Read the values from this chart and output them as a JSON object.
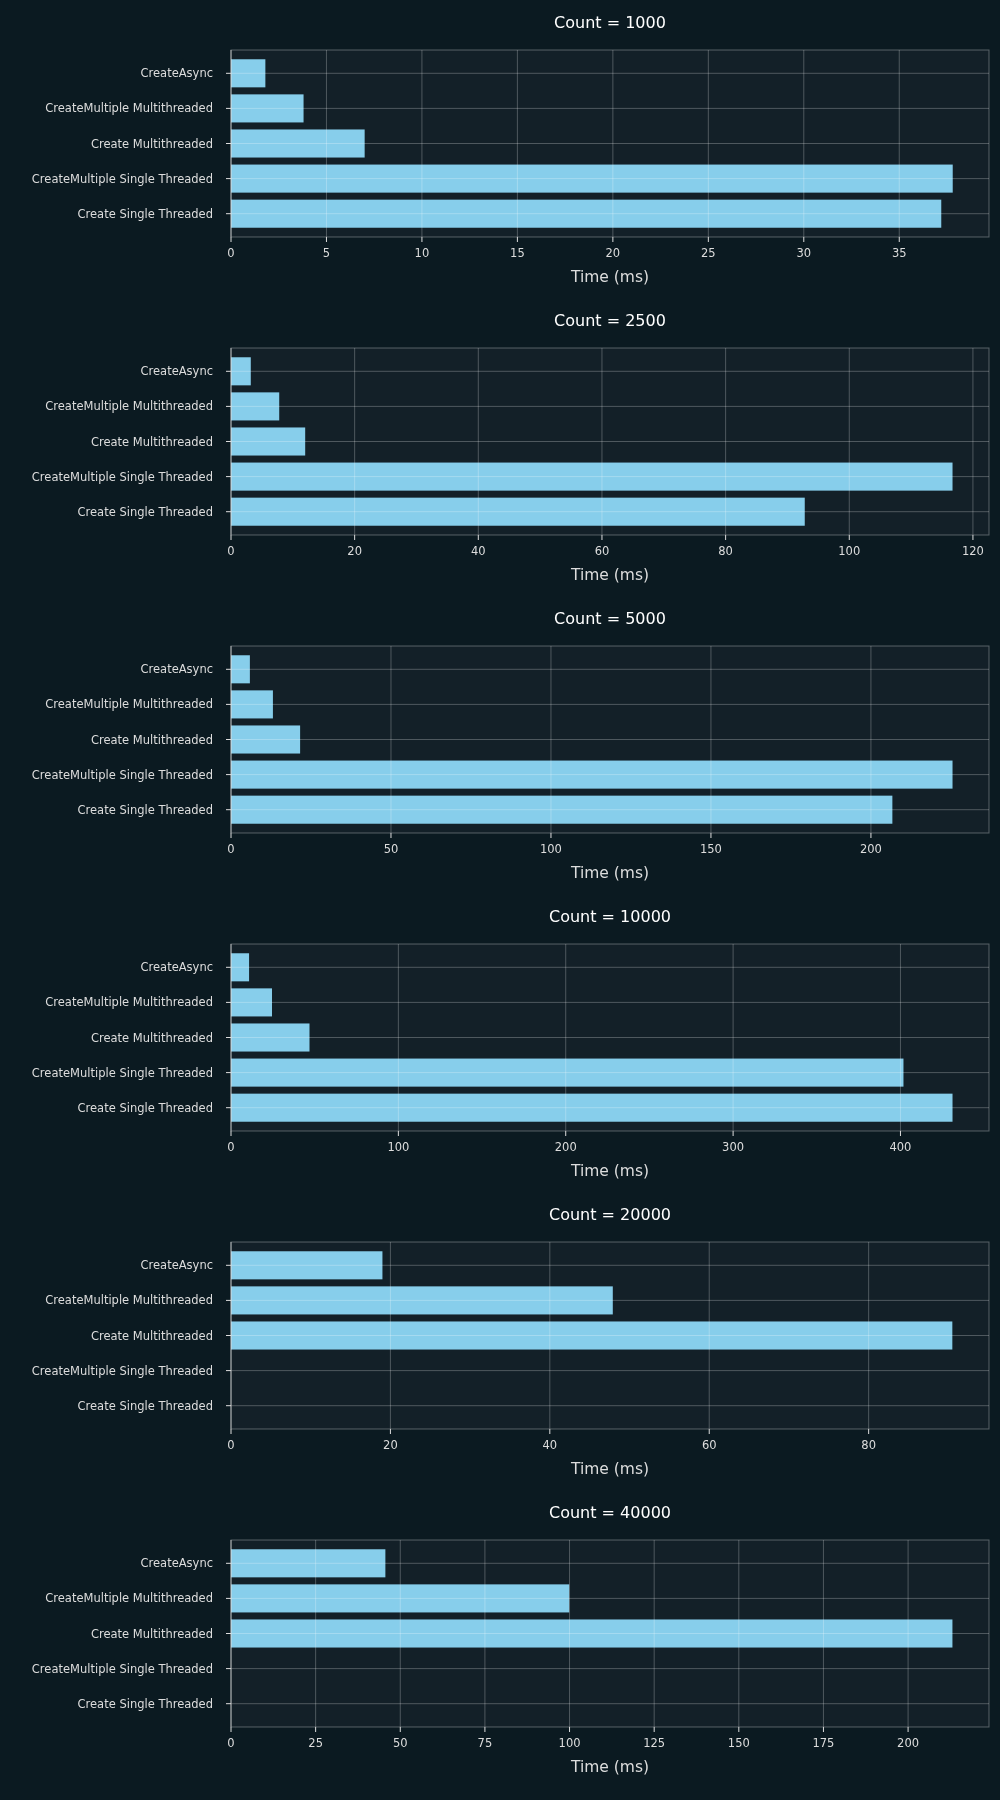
{
  "chart_data": [
    {
      "type": "bar",
      "orientation": "horizontal",
      "title": "Count = 1000",
      "xlabel": "Time (ms)",
      "categories": [
        "CreateAsync",
        "CreateMultiple Multithreaded",
        "Create Multithreaded",
        "CreateMultiple Single Threaded",
        "Create Single Threaded"
      ],
      "values": [
        1.8,
        3.8,
        7.0,
        37.8,
        37.2
      ],
      "color": "#87ceeb",
      "xlim": [
        0,
        39.7
      ],
      "xticks": [
        0,
        5,
        10,
        15,
        20,
        25,
        30,
        35
      ],
      "grid": true
    },
    {
      "type": "bar",
      "orientation": "horizontal",
      "title": "Count = 2500",
      "xlabel": "Time (ms)",
      "categories": [
        "CreateAsync",
        "CreateMultiple Multithreaded",
        "Create Multithreaded",
        "CreateMultiple Single Threaded",
        "Create Single Threaded"
      ],
      "values": [
        3.2,
        7.8,
        12.0,
        116.7,
        92.8
      ],
      "color": "#87ceeb",
      "xlim": [
        0,
        122.6
      ],
      "xticks": [
        0,
        20,
        40,
        60,
        80,
        100,
        120
      ],
      "grid": true
    },
    {
      "type": "bar",
      "orientation": "horizontal",
      "title": "Count = 5000",
      "xlabel": "Time (ms)",
      "categories": [
        "CreateAsync",
        "CreateMultiple Multithreaded",
        "Create Multithreaded",
        "CreateMultiple Single Threaded",
        "Create Single Threaded"
      ],
      "values": [
        5.9,
        13.1,
        21.6,
        225.5,
        206.7
      ],
      "color": "#87ceeb",
      "xlim": [
        0,
        236.9
      ],
      "xticks": [
        0,
        50,
        100,
        150,
        200
      ],
      "grid": true
    },
    {
      "type": "bar",
      "orientation": "horizontal",
      "title": "Count = 10000",
      "xlabel": "Time (ms)",
      "categories": [
        "CreateAsync",
        "CreateMultiple Multithreaded",
        "Create Multithreaded",
        "CreateMultiple Single Threaded",
        "Create Single Threaded"
      ],
      "values": [
        10.8,
        24.5,
        46.9,
        401.8,
        431.1
      ],
      "color": "#87ceeb",
      "xlim": [
        0,
        452.9
      ],
      "xticks": [
        0,
        100,
        200,
        300,
        400
      ],
      "grid": true
    },
    {
      "type": "bar",
      "orientation": "horizontal",
      "title": "Count = 20000",
      "xlabel": "Time (ms)",
      "categories": [
        "CreateAsync",
        "CreateMultiple Multithreaded",
        "Create Multithreaded",
        "CreateMultiple Single Threaded",
        "Create Single Threaded"
      ],
      "values": [
        19.0,
        47.9,
        90.5,
        null,
        null
      ],
      "color": "#87ceeb",
      "xlim": [
        0,
        95.1
      ],
      "xticks": [
        0,
        20,
        40,
        60,
        80
      ],
      "grid": true
    },
    {
      "type": "bar",
      "orientation": "horizontal",
      "title": "Count = 40000",
      "xlabel": "Time (ms)",
      "categories": [
        "CreateAsync",
        "CreateMultiple Multithreaded",
        "Create Multithreaded",
        "CreateMultiple Single Threaded",
        "Create Single Threaded"
      ],
      "values": [
        45.6,
        99.9,
        213.1,
        null,
        null
      ],
      "color": "#87ceeb",
      "xlim": [
        0,
        223.9
      ],
      "xticks": [
        0,
        25,
        50,
        75,
        100,
        125,
        150,
        175,
        200
      ],
      "grid": true
    }
  ]
}
